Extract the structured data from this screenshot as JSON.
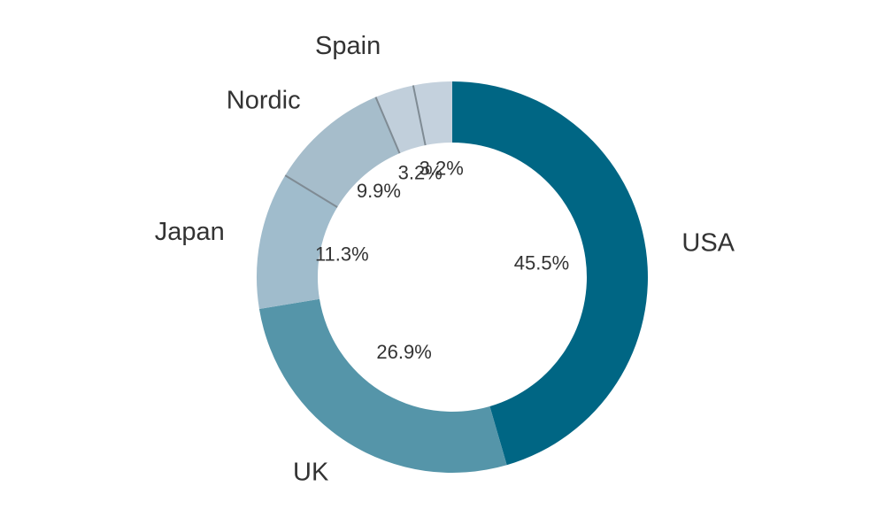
{
  "chart_data": {
    "type": "pie",
    "donut": true,
    "title": "",
    "start_angle_deg": 0,
    "direction": "clockwise",
    "slices": [
      {
        "label": "USA",
        "value": 45.5,
        "value_label": "45.5%",
        "color": "#006684"
      },
      {
        "label": "UK",
        "value": 26.9,
        "value_label": "26.9%",
        "color": "#5595a9"
      },
      {
        "label": "Japan",
        "value": 11.3,
        "value_label": "11.3%",
        "color": "#a0bccc"
      },
      {
        "label": "Nordic",
        "value": 9.9,
        "value_label": "9.9%",
        "color": "#a6bdcb"
      },
      {
        "label": "Spain",
        "value": 3.2,
        "value_label": "3.2%",
        "color": "#c1cfdb"
      },
      {
        "label": "",
        "value": 3.2,
        "value_label": "3.2%",
        "color": "#c4d1dd"
      }
    ]
  }
}
